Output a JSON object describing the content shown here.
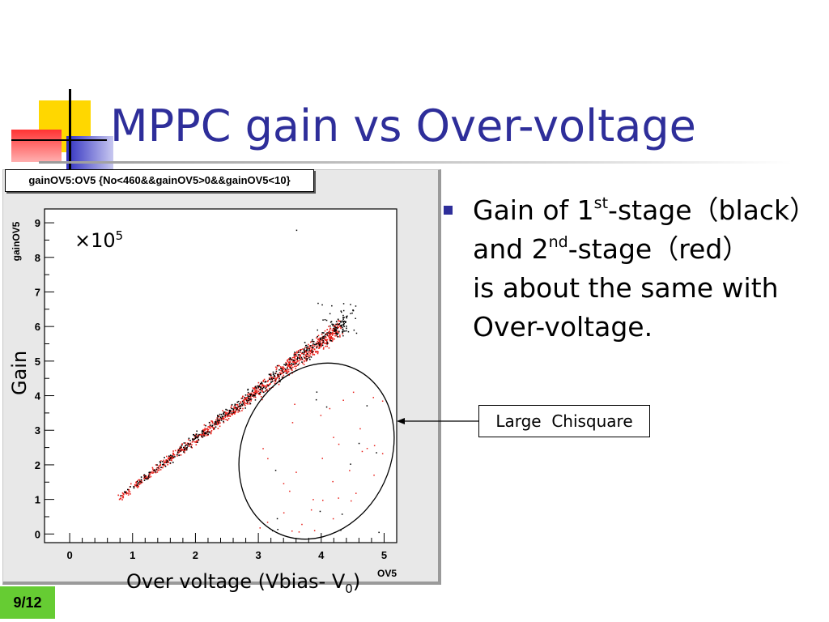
{
  "slide": {
    "title": "MPPC gain vs Over-voltage",
    "page_number": "9/12"
  },
  "bullet": {
    "line1_pre": "Gain of 1",
    "line1_sup": "st",
    "line1_post": "-stage（black）",
    "line2_pre": "and  2",
    "line2_sup": "nd",
    "line2_post": "-stage（red）",
    "line3": "is about the same with",
    "line4": "Over-voltage."
  },
  "callout": {
    "label": "Large  Chisquare"
  },
  "colors": {
    "title": "#2e2e9a",
    "bullet": "#2e2e9a",
    "page_badge": "#66cc33",
    "series_black": "#000000",
    "series_red": "#e8201a"
  },
  "chart_data": {
    "type": "scatter",
    "title": "gainOV5:OV5 {No<460&&gainOV5>0&&gainOV5<10}",
    "xlabel": "Over voltage (Vbias- V",
    "xlabel_sub": "0",
    "xlabel_post": ")",
    "ylabel": "Gain",
    "root_ylabel": "gainOV5",
    "root_xlabel": "OV5",
    "multiplier_base": "×10",
    "multiplier_exp": "5",
    "xlim": [
      0,
      5.2
    ],
    "ylim": [
      0,
      9.4
    ],
    "xticks": [
      "0",
      "1",
      "2",
      "3",
      "4",
      "5"
    ],
    "yticks": [
      "0",
      "1",
      "2",
      "3",
      "4",
      "5",
      "6",
      "7",
      "8",
      "9"
    ],
    "grid": false,
    "series": [
      {
        "name": "1st-stage",
        "trend": {
          "slope": 1.42,
          "x_range": [
            0.8,
            4.4
          ]
        }
      },
      {
        "name": "2nd-stage",
        "trend": {
          "slope": 1.41,
          "x_range": [
            0.75,
            4.3
          ]
        }
      }
    ],
    "outlier_region": {
      "label": "Large  Chisquare",
      "x_range": [
        2.7,
        5.1
      ],
      "y_range": [
        0,
        5
      ]
    }
  }
}
